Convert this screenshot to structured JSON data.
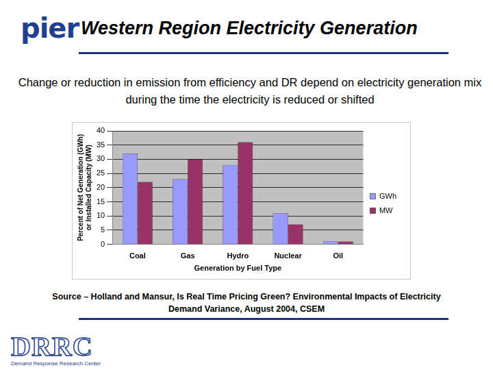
{
  "slide": {
    "logo_top": "pier",
    "title": "Western Region Electricity Generation",
    "text": "Change or reduction in emission from efficiency and DR depend on electricity generation mix during the time the electricity is reduced or shifted",
    "source": "Source – Holland and Mansur, Is Real Time Pricing Green? Environmental Impacts of Electricity Demand Variance, August 2004, CSEM",
    "logo_bottom": "DRRC",
    "logo_bottom_caption": "Demand Response Research Center"
  },
  "chart_data": {
    "type": "bar",
    "xlabel": "Generation by Fuel Type",
    "ylabel": [
      "Percent of Net Generation (GWh)",
      "or Installed Capacity (MW)"
    ],
    "categories": [
      "Coal",
      "Gas",
      "Hydro",
      "Nuclear",
      "Oil"
    ],
    "series": [
      {
        "name": "GWh",
        "color": "#9999ff",
        "values": [
          32,
          23,
          28,
          11,
          1
        ]
      },
      {
        "name": "MW",
        "color": "#993366",
        "values": [
          22,
          30,
          36,
          7,
          1
        ]
      }
    ],
    "ylim": [
      0,
      40
    ],
    "yticks": [
      0,
      5,
      10,
      15,
      20,
      25,
      30,
      35,
      40
    ],
    "grid": true,
    "legend": "right"
  }
}
